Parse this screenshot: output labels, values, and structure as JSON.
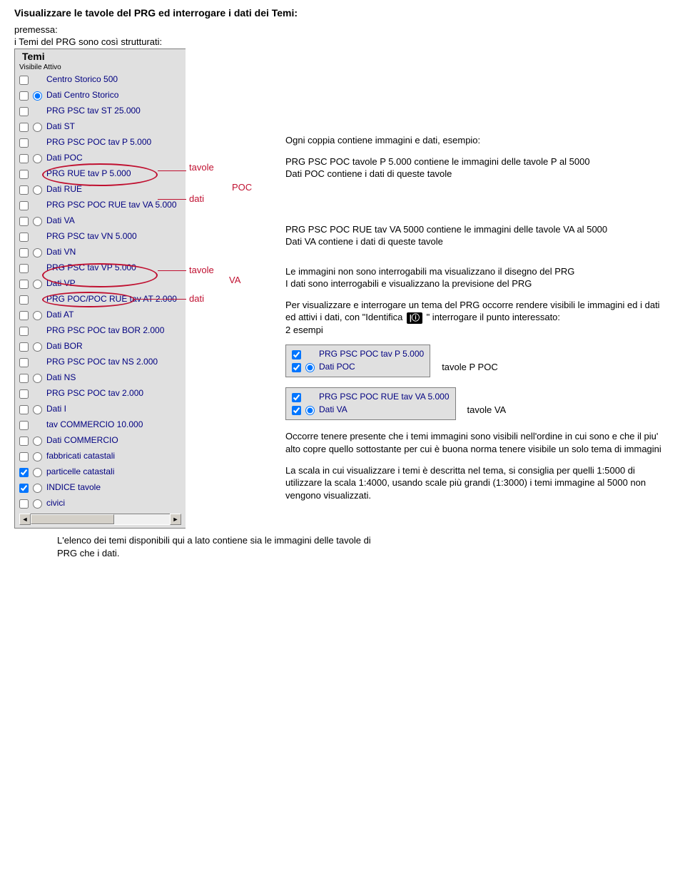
{
  "heading": "Visualizzare le tavole del PRG ed interrogare i dati dei Temi:",
  "intro1": "premessa:",
  "intro2": "i Temi del PRG sono così strutturati:",
  "panel": {
    "title": "Temi",
    "header_small": "Visibile Attivo",
    "items": [
      {
        "cb": false,
        "radio": false,
        "label": "Centro Storico 500"
      },
      {
        "cb": false,
        "radio": true,
        "has_radio": true,
        "label": "Dati Centro Storico"
      },
      {
        "cb": false,
        "radio": false,
        "label": "PRG PSC tav ST 25.000"
      },
      {
        "cb": false,
        "radio": false,
        "has_radio": true,
        "label": "Dati ST"
      },
      {
        "cb": false,
        "radio": false,
        "label": "PRG PSC POC tav P 5.000"
      },
      {
        "cb": false,
        "radio": false,
        "has_radio": true,
        "label": "Dati POC"
      },
      {
        "cb": false,
        "radio": false,
        "label": "PRG RUE tav P 5.000"
      },
      {
        "cb": false,
        "radio": false,
        "has_radio": true,
        "label": "Dati RUE"
      },
      {
        "cb": false,
        "radio": false,
        "label": "PRG PSC POC RUE tav VA 5.000"
      },
      {
        "cb": false,
        "radio": false,
        "has_radio": true,
        "label": "Dati VA"
      },
      {
        "cb": false,
        "radio": false,
        "label": "PRG PSC tav VN 5.000"
      },
      {
        "cb": false,
        "radio": false,
        "has_radio": true,
        "label": "Dati VN"
      },
      {
        "cb": false,
        "radio": false,
        "label": "PRG PSC tav VP 5.000"
      },
      {
        "cb": false,
        "radio": false,
        "has_radio": true,
        "label": "Dati VP"
      },
      {
        "cb": false,
        "radio": false,
        "label": "PRG POC/POC RUE tav AT 2.000"
      },
      {
        "cb": false,
        "radio": false,
        "has_radio": true,
        "label": "Dati AT"
      },
      {
        "cb": false,
        "radio": false,
        "label": "PRG PSC POC tav BOR 2.000"
      },
      {
        "cb": false,
        "radio": false,
        "has_radio": true,
        "label": "Dati BOR"
      },
      {
        "cb": false,
        "radio": false,
        "label": "PRG PSC POC tav NS 2.000"
      },
      {
        "cb": false,
        "radio": false,
        "has_radio": true,
        "label": "Dati NS"
      },
      {
        "cb": false,
        "radio": false,
        "label": "PRG PSC POC tav 2.000"
      },
      {
        "cb": false,
        "radio": false,
        "has_radio": true,
        "label": "Dati I"
      },
      {
        "cb": false,
        "radio": false,
        "label": "tav COMMERCIO 10.000"
      },
      {
        "cb": false,
        "radio": false,
        "has_radio": true,
        "label": "Dati COMMERCIO"
      },
      {
        "cb": false,
        "radio": false,
        "has_radio": true,
        "label": "fabbricati catastali"
      },
      {
        "cb": true,
        "radio": false,
        "has_radio": true,
        "label": "particelle catastali"
      },
      {
        "cb": true,
        "radio": false,
        "has_radio": true,
        "label": "INDICE tavole"
      },
      {
        "cb": false,
        "radio": false,
        "has_radio": true,
        "label": "civici"
      }
    ]
  },
  "annotations": {
    "tavole": "tavole",
    "dati": "dati",
    "POC": "POC",
    "VA": "VA",
    "color": "#c01030"
  },
  "right": {
    "p1": "Ogni coppia contiene immagini e dati, esempio:",
    "p2": "PRG PSC POC tavole P 5.000 contiene le immagini delle tavole P al 5000\nDati POC contiene i dati di queste tavole",
    "p3": " PRG PSC POC RUE tav VA 5000 contiene le immagini delle tavole VA al 5000\nDati VA contiene i dati di queste tavole",
    "p4": "Le immagini non sono interrogabili ma visualizzano il disegno del PRG\nI dati sono interrogabili e visualizzano la previsione del PRG",
    "p5a": "Per  visualizzare e interrogare un tema del PRG occorre rendere visibili le immagini ed i dati ed attivi i dati, con \"Identifica",
    "p5b": "\" interrogare il punto interessato:\n2 esempi",
    "mini1": {
      "rows": [
        {
          "cb": true,
          "radio": false,
          "has_radio": false,
          "label": "PRG PSC POC tav P 5.000"
        },
        {
          "cb": true,
          "radio": true,
          "has_radio": true,
          "label": "Dati POC"
        }
      ],
      "caption": "tavole P POC"
    },
    "mini2": {
      "rows": [
        {
          "cb": true,
          "radio": false,
          "has_radio": false,
          "label": "PRG PSC POC RUE tav VA 5.000"
        },
        {
          "cb": true,
          "radio": true,
          "has_radio": true,
          "label": "Dati VA"
        }
      ],
      "caption": "tavole VA"
    },
    "p6": "Occorre tenere presente che i temi immagini sono visibili nell'ordine in cui sono e che il piu' alto copre quello sottostante per cui è buona norma tenere visibile un solo tema di immagini",
    "p7": "La scala in cui visualizzare i temi è descritta nel tema, si consiglia per quelli 1:5000 di utilizzare la scala 1:4000, usando scale più grandi (1:3000) i temi immagine al 5000 non vengono visualizzati."
  },
  "footer": "L'elenco dei temi disponibili qui a lato contiene sia le immagini delle tavole di PRG che i dati.",
  "colors": {
    "panel_bg": "#e0e0e0",
    "label_fg": "#000080",
    "anno_fg": "#c01030"
  }
}
